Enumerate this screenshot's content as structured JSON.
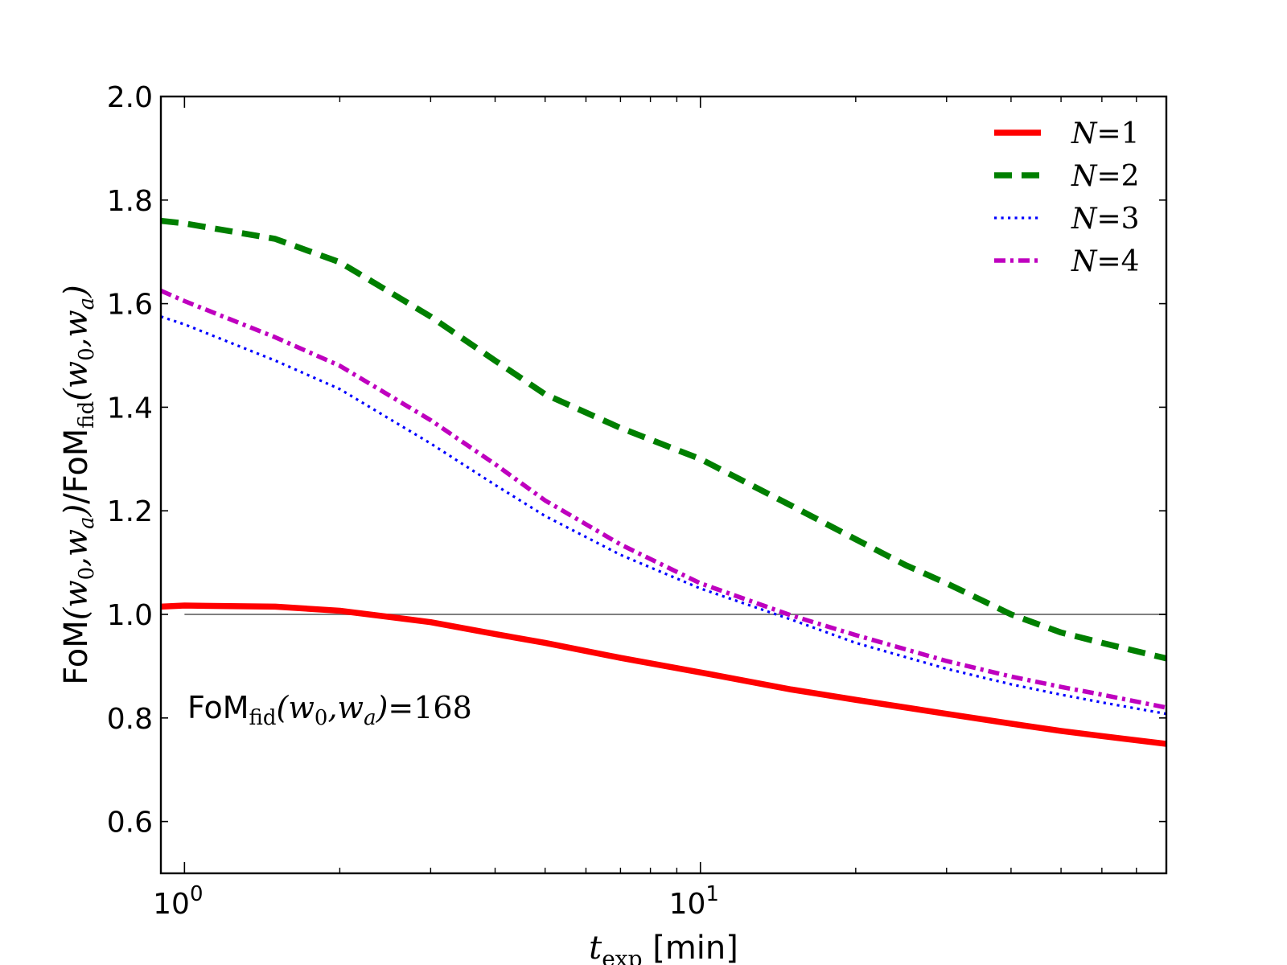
{
  "chart_data": {
    "type": "line",
    "x_scale": "log",
    "xlim": [
      0.9,
      80
    ],
    "ylim": [
      0.5,
      2.0
    ],
    "xlabel": {
      "var": "t",
      "sub": "exp",
      "unit": "[min]"
    },
    "ylabel": {
      "num_pre": "FoM",
      "num_args": "(w",
      "num_sub0": "0",
      "num_mid": ",w",
      "num_suba": "a",
      "num_post": ")",
      "slash": "/",
      "den_pre": "FoM",
      "den_sub": "fid"
    },
    "x_ticks": [
      {
        "value": 1,
        "base": "10",
        "exp": "0"
      },
      {
        "value": 10,
        "base": "10",
        "exp": "1"
      }
    ],
    "y_ticks": [
      {
        "value": 0.6,
        "label": "0.6"
      },
      {
        "value": 0.8,
        "label": "0.8"
      },
      {
        "value": 1.0,
        "label": "1.0"
      },
      {
        "value": 1.2,
        "label": "1.2"
      },
      {
        "value": 1.4,
        "label": "1.4"
      },
      {
        "value": 1.6,
        "label": "1.6"
      },
      {
        "value": 1.8,
        "label": "1.8"
      },
      {
        "value": 2.0,
        "label": "2.0"
      }
    ],
    "reference_line": {
      "y": 1.0,
      "x_from": 1.0,
      "x_to": 80,
      "color": "#808080"
    },
    "annotation": {
      "pre": "FoM",
      "sub": "fid",
      "args": "(w",
      "sub0": "0",
      "mid": ",w",
      "suba": "a",
      "post": ")",
      "eq": "=",
      "value": "168"
    },
    "series": [
      {
        "name": "N=1",
        "label_var": "N",
        "label_eq": "=",
        "label_num": "1",
        "color": "#ff0000",
        "style": "solid",
        "x": [
          0.9,
          1.0,
          1.5,
          2.0,
          2.5,
          3.0,
          4.0,
          5.0,
          7.0,
          10.0,
          15.0,
          20.0,
          30.0,
          40.0,
          50.0,
          60.0,
          80.0
        ],
        "y": [
          1.015,
          1.017,
          1.015,
          1.007,
          0.995,
          0.985,
          0.962,
          0.945,
          0.916,
          0.888,
          0.855,
          0.835,
          0.808,
          0.789,
          0.775,
          0.765,
          0.75
        ]
      },
      {
        "name": "N=2",
        "label_var": "N",
        "label_eq": "=",
        "label_num": "2",
        "color": "#007f00",
        "style": "dashed",
        "x": [
          0.9,
          1.0,
          1.5,
          2.0,
          3.0,
          4.0,
          5.0,
          7.0,
          10.0,
          15.0,
          20.0,
          25.0,
          30.0,
          40.0,
          50.0,
          60.0,
          80.0
        ],
        "y": [
          1.76,
          1.755,
          1.725,
          1.68,
          1.575,
          1.49,
          1.425,
          1.36,
          1.3,
          1.21,
          1.145,
          1.095,
          1.06,
          1.0,
          0.965,
          0.945,
          0.915
        ]
      },
      {
        "name": "N=3",
        "label_var": "N",
        "label_eq": "=",
        "label_num": "3",
        "color": "#0000ff",
        "style": "dotted",
        "x": [
          0.9,
          1.0,
          1.5,
          2.0,
          3.0,
          4.0,
          5.0,
          7.0,
          10.0,
          15.0,
          20.0,
          30.0,
          40.0,
          50.0,
          60.0,
          80.0
        ],
        "y": [
          1.575,
          1.56,
          1.49,
          1.435,
          1.33,
          1.25,
          1.19,
          1.115,
          1.05,
          0.99,
          0.945,
          0.895,
          0.865,
          0.845,
          0.83,
          0.808
        ]
      },
      {
        "name": "N=4",
        "label_var": "N",
        "label_eq": "=",
        "label_num": "4",
        "color": "#bf00bf",
        "style": "dashdot",
        "x": [
          0.9,
          1.0,
          1.5,
          2.0,
          3.0,
          4.0,
          5.0,
          7.0,
          10.0,
          15.0,
          20.0,
          30.0,
          40.0,
          50.0,
          60.0,
          80.0
        ],
        "y": [
          1.625,
          1.605,
          1.535,
          1.48,
          1.375,
          1.29,
          1.22,
          1.135,
          1.06,
          0.998,
          0.96,
          0.91,
          0.88,
          0.86,
          0.845,
          0.82
        ]
      }
    ]
  }
}
